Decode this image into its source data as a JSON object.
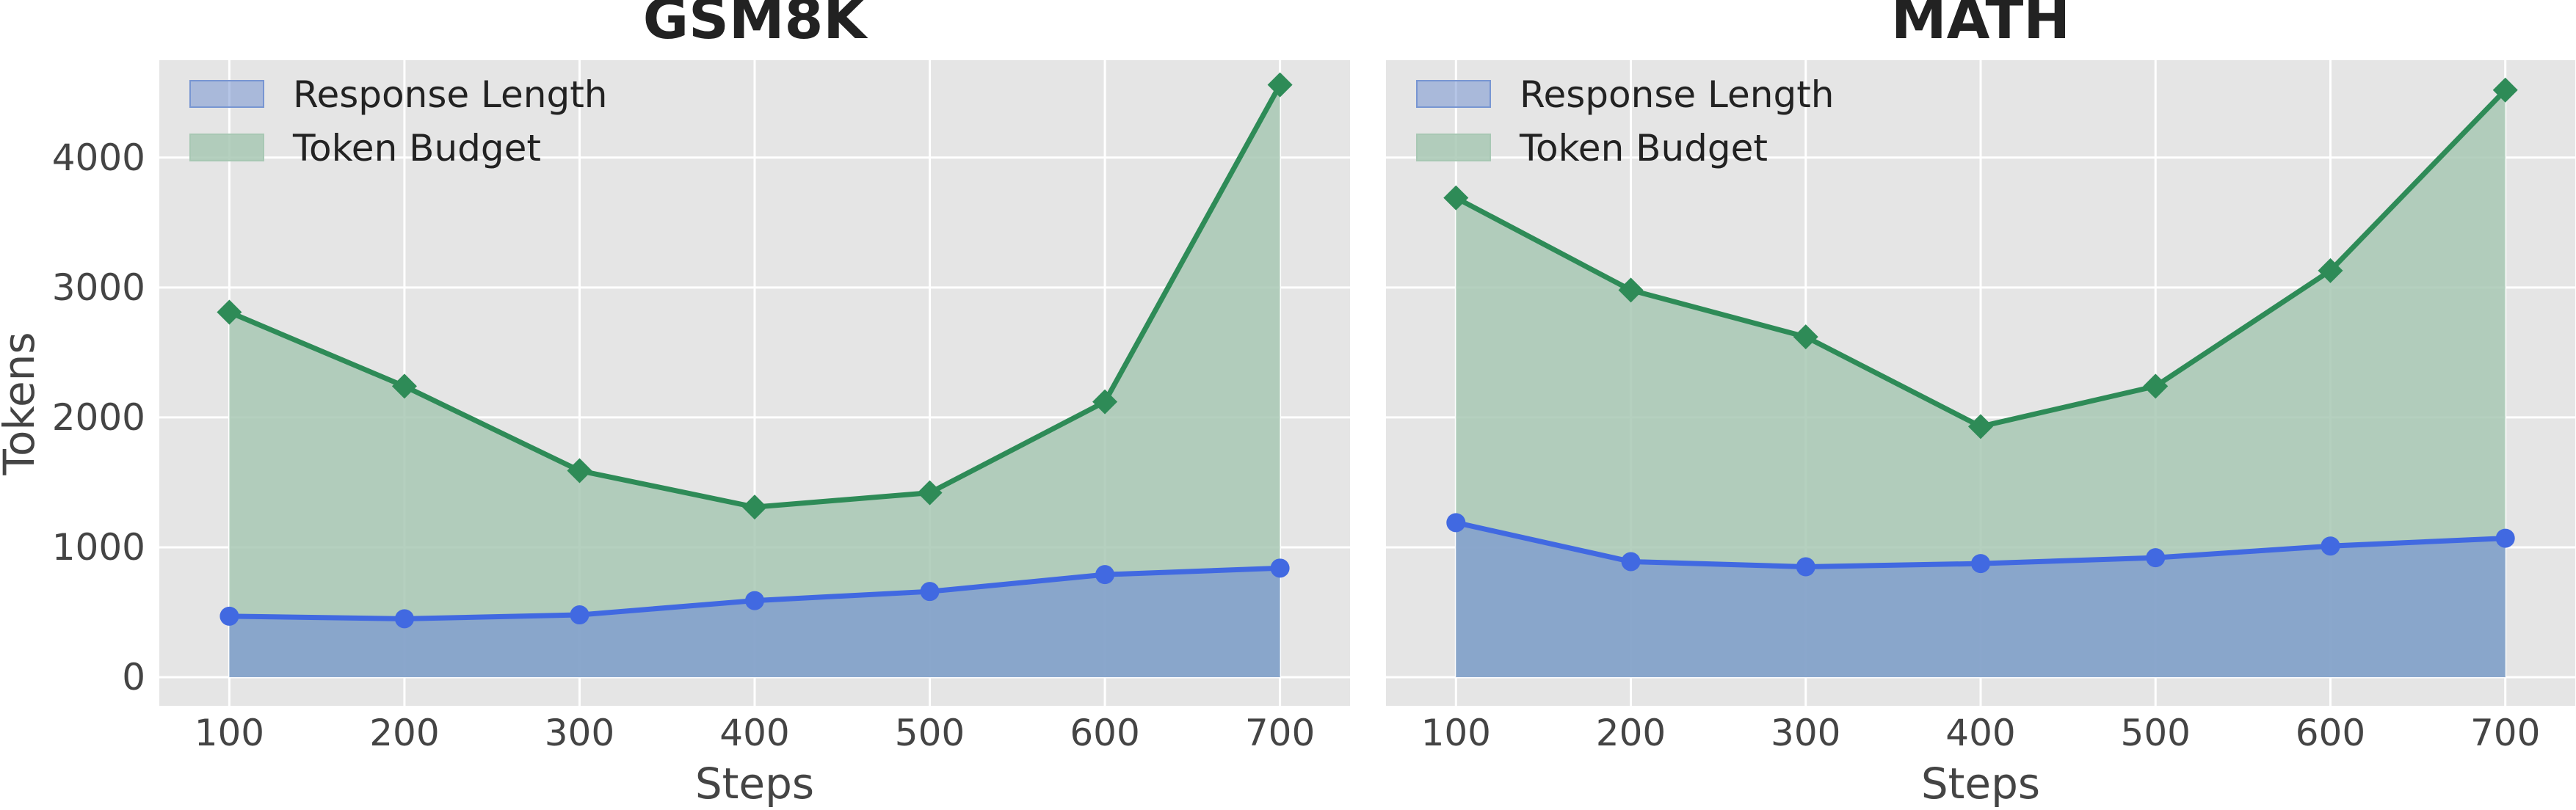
{
  "chart_data": [
    {
      "type": "area",
      "title": "GSM8K",
      "xlabel": "Steps",
      "ylabel": "Tokens",
      "x": [
        100,
        200,
        300,
        400,
        500,
        600,
        700
      ],
      "xlim": [
        60,
        740
      ],
      "ylim": [
        -220,
        4750
      ],
      "xticks": [
        100,
        200,
        300,
        400,
        500,
        600,
        700
      ],
      "yticks": [
        0,
        1000,
        2000,
        3000,
        4000
      ],
      "grid": true,
      "legend_position": "top-left",
      "series": [
        {
          "name": "Response Length",
          "values": [
            470,
            450,
            480,
            590,
            660,
            790,
            840
          ],
          "color": "#4169e1",
          "fill": "#7896d2",
          "marker": "circle"
        },
        {
          "name": "Token Budget",
          "values": [
            2810,
            2240,
            1590,
            1310,
            1420,
            2120,
            4560
          ],
          "color": "#2e8b57",
          "fill": "#a8c8b4",
          "marker": "diamond"
        }
      ]
    },
    {
      "type": "area",
      "title": "MATH",
      "xlabel": "Steps",
      "ylabel": "",
      "x": [
        100,
        200,
        300,
        400,
        500,
        600,
        700
      ],
      "xlim": [
        60,
        740
      ],
      "ylim": [
        -220,
        4750
      ],
      "xticks": [
        100,
        200,
        300,
        400,
        500,
        600,
        700
      ],
      "yticks": [],
      "grid": true,
      "legend_position": "top-left",
      "series": [
        {
          "name": "Response Length",
          "values": [
            1190,
            890,
            850,
            875,
            920,
            1010,
            1070
          ],
          "color": "#4169e1",
          "fill": "#7896d2",
          "marker": "circle"
        },
        {
          "name": "Token Budget",
          "values": [
            3690,
            2980,
            2620,
            1930,
            2240,
            3130,
            4520
          ],
          "color": "#2e8b57",
          "fill": "#a8c8b4",
          "marker": "diamond"
        }
      ]
    }
  ]
}
